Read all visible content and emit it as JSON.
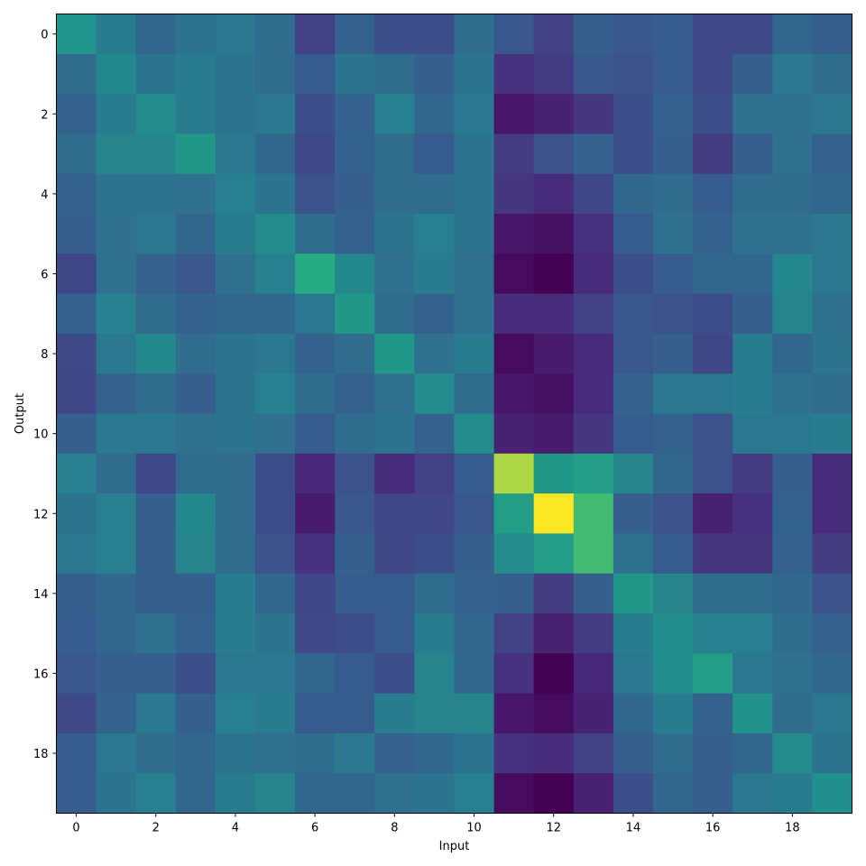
{
  "chart_data": {
    "type": "heatmap",
    "title": "",
    "xlabel": "Input",
    "ylabel": "Output",
    "colormap": "viridis",
    "value_range": [
      0,
      1
    ],
    "grid": false,
    "legend": "none",
    "xlim": [
      -0.5,
      19.5
    ],
    "ylim": [
      19.5,
      -0.5
    ],
    "x_ticks": [
      0,
      2,
      4,
      6,
      8,
      10,
      12,
      14,
      16,
      18
    ],
    "y_ticks": [
      0,
      2,
      4,
      6,
      8,
      10,
      12,
      14,
      16,
      18
    ],
    "x_tick_labels": [
      "0",
      "2",
      "4",
      "6",
      "8",
      "10",
      "12",
      "14",
      "16",
      "18"
    ],
    "y_tick_labels": [
      "0",
      "2",
      "4",
      "6",
      "8",
      "10",
      "12",
      "14",
      "16",
      "18"
    ],
    "rows": 20,
    "cols": 20,
    "values": [
      [
        0.65,
        0.52,
        0.42,
        0.48,
        0.5,
        0.44,
        0.24,
        0.4,
        0.3,
        0.3,
        0.44,
        0.34,
        0.24,
        0.38,
        0.34,
        0.36,
        0.28,
        0.28,
        0.42,
        0.38
      ],
      [
        0.44,
        0.58,
        0.48,
        0.52,
        0.48,
        0.44,
        0.36,
        0.48,
        0.44,
        0.38,
        0.48,
        0.18,
        0.22,
        0.34,
        0.32,
        0.36,
        0.28,
        0.38,
        0.5,
        0.44
      ],
      [
        0.4,
        0.52,
        0.6,
        0.52,
        0.48,
        0.5,
        0.3,
        0.4,
        0.54,
        0.42,
        0.5,
        0.08,
        0.12,
        0.2,
        0.3,
        0.4,
        0.3,
        0.46,
        0.46,
        0.5
      ],
      [
        0.44,
        0.56,
        0.56,
        0.66,
        0.5,
        0.42,
        0.28,
        0.4,
        0.44,
        0.36,
        0.48,
        0.22,
        0.32,
        0.4,
        0.3,
        0.38,
        0.22,
        0.38,
        0.46,
        0.4
      ],
      [
        0.4,
        0.48,
        0.48,
        0.46,
        0.54,
        0.48,
        0.32,
        0.38,
        0.44,
        0.44,
        0.48,
        0.2,
        0.16,
        0.26,
        0.42,
        0.44,
        0.36,
        0.44,
        0.44,
        0.42
      ],
      [
        0.38,
        0.46,
        0.5,
        0.42,
        0.52,
        0.6,
        0.44,
        0.4,
        0.48,
        0.54,
        0.48,
        0.08,
        0.06,
        0.18,
        0.36,
        0.46,
        0.4,
        0.46,
        0.46,
        0.5
      ],
      [
        0.26,
        0.46,
        0.4,
        0.34,
        0.46,
        0.54,
        0.76,
        0.58,
        0.46,
        0.52,
        0.46,
        0.04,
        0.0,
        0.16,
        0.3,
        0.36,
        0.42,
        0.42,
        0.58,
        0.5
      ],
      [
        0.4,
        0.54,
        0.44,
        0.4,
        0.42,
        0.42,
        0.5,
        0.66,
        0.44,
        0.4,
        0.46,
        0.16,
        0.16,
        0.24,
        0.34,
        0.32,
        0.3,
        0.38,
        0.56,
        0.46
      ],
      [
        0.28,
        0.5,
        0.58,
        0.44,
        0.48,
        0.5,
        0.4,
        0.44,
        0.66,
        0.46,
        0.52,
        0.04,
        0.1,
        0.16,
        0.34,
        0.38,
        0.26,
        0.52,
        0.42,
        0.48
      ],
      [
        0.26,
        0.4,
        0.44,
        0.38,
        0.48,
        0.54,
        0.44,
        0.4,
        0.46,
        0.6,
        0.44,
        0.08,
        0.06,
        0.16,
        0.4,
        0.5,
        0.5,
        0.52,
        0.46,
        0.44
      ],
      [
        0.38,
        0.5,
        0.5,
        0.46,
        0.48,
        0.46,
        0.36,
        0.44,
        0.48,
        0.4,
        0.6,
        0.12,
        0.1,
        0.2,
        0.36,
        0.4,
        0.32,
        0.5,
        0.5,
        0.52
      ],
      [
        0.54,
        0.44,
        0.28,
        0.44,
        0.44,
        0.3,
        0.14,
        0.32,
        0.16,
        0.24,
        0.36,
        0.94,
        0.66,
        0.7,
        0.56,
        0.42,
        0.32,
        0.22,
        0.38,
        0.16
      ],
      [
        0.48,
        0.54,
        0.38,
        0.58,
        0.44,
        0.3,
        0.1,
        0.34,
        0.26,
        0.26,
        0.34,
        0.7,
        1.0,
        0.82,
        0.38,
        0.32,
        0.12,
        0.18,
        0.4,
        0.16
      ],
      [
        0.5,
        0.54,
        0.38,
        0.56,
        0.44,
        0.32,
        0.18,
        0.38,
        0.26,
        0.3,
        0.38,
        0.6,
        0.7,
        0.82,
        0.46,
        0.36,
        0.2,
        0.2,
        0.4,
        0.22
      ],
      [
        0.38,
        0.42,
        0.38,
        0.38,
        0.52,
        0.42,
        0.26,
        0.36,
        0.36,
        0.44,
        0.4,
        0.38,
        0.22,
        0.38,
        0.66,
        0.56,
        0.44,
        0.44,
        0.42,
        0.32
      ],
      [
        0.36,
        0.42,
        0.46,
        0.4,
        0.52,
        0.48,
        0.28,
        0.3,
        0.36,
        0.52,
        0.42,
        0.24,
        0.12,
        0.22,
        0.52,
        0.62,
        0.54,
        0.54,
        0.44,
        0.4
      ],
      [
        0.34,
        0.38,
        0.38,
        0.3,
        0.5,
        0.5,
        0.42,
        0.36,
        0.3,
        0.56,
        0.42,
        0.18,
        0.0,
        0.14,
        0.5,
        0.62,
        0.7,
        0.5,
        0.46,
        0.42
      ],
      [
        0.28,
        0.4,
        0.5,
        0.38,
        0.54,
        0.52,
        0.36,
        0.36,
        0.52,
        0.56,
        0.56,
        0.08,
        0.04,
        0.12,
        0.42,
        0.52,
        0.4,
        0.64,
        0.44,
        0.5
      ],
      [
        0.36,
        0.5,
        0.44,
        0.42,
        0.48,
        0.46,
        0.44,
        0.5,
        0.4,
        0.42,
        0.48,
        0.18,
        0.16,
        0.24,
        0.38,
        0.44,
        0.38,
        0.42,
        0.6,
        0.48
      ],
      [
        0.36,
        0.48,
        0.54,
        0.42,
        0.52,
        0.56,
        0.42,
        0.42,
        0.46,
        0.48,
        0.54,
        0.04,
        0.0,
        0.12,
        0.3,
        0.42,
        0.38,
        0.5,
        0.52,
        0.62
      ]
    ]
  }
}
